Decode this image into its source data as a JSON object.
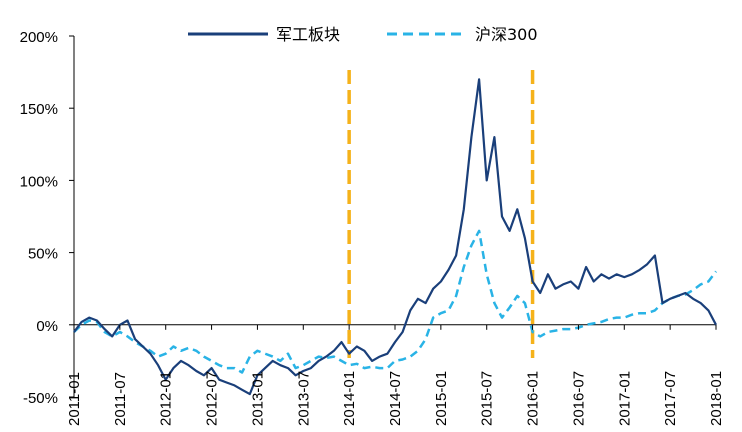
{
  "chart_data": {
    "type": "line",
    "legend_position": "top",
    "y_ticks": [
      "200%",
      "150%",
      "100%",
      "50%",
      "0%",
      "-50%"
    ],
    "y_tick_values": [
      200,
      150,
      100,
      50,
      0,
      -50
    ],
    "ylim": [
      -50,
      200
    ],
    "x_ticks": [
      "2011-01",
      "2011-07",
      "2012-01",
      "2012-07",
      "2013-01",
      "2013-07",
      "2014-01",
      "2014-07",
      "2015-01",
      "2015-07",
      "2016-01",
      "2016-07",
      "2017-01",
      "2017-07",
      "2018-01"
    ],
    "xlim": [
      "2011-01",
      "2018-01"
    ],
    "vertical_markers": [
      "2014-01",
      "2016-01"
    ],
    "marker_color": "#f5b21a",
    "series": [
      {
        "name": "军工板块",
        "color": "#1a3f7a",
        "dash": "solid",
        "points": [
          [
            "2011-01",
            -5
          ],
          [
            "2011-02",
            2
          ],
          [
            "2011-03",
            5
          ],
          [
            "2011-04",
            3
          ],
          [
            "2011-05",
            -3
          ],
          [
            "2011-06",
            -8
          ],
          [
            "2011-07",
            0
          ],
          [
            "2011-08",
            3
          ],
          [
            "2011-09",
            -10
          ],
          [
            "2011-10",
            -15
          ],
          [
            "2011-11",
            -20
          ],
          [
            "2011-12",
            -28
          ],
          [
            "2012-01",
            -38
          ],
          [
            "2012-02",
            -30
          ],
          [
            "2012-03",
            -25
          ],
          [
            "2012-04",
            -28
          ],
          [
            "2012-05",
            -32
          ],
          [
            "2012-06",
            -35
          ],
          [
            "2012-07",
            -30
          ],
          [
            "2012-08",
            -38
          ],
          [
            "2012-09",
            -40
          ],
          [
            "2012-10",
            -42
          ],
          [
            "2012-11",
            -45
          ],
          [
            "2012-12",
            -48
          ],
          [
            "2013-01",
            -35
          ],
          [
            "2013-02",
            -30
          ],
          [
            "2013-03",
            -25
          ],
          [
            "2013-04",
            -28
          ],
          [
            "2013-05",
            -30
          ],
          [
            "2013-06",
            -35
          ],
          [
            "2013-07",
            -32
          ],
          [
            "2013-08",
            -30
          ],
          [
            "2013-09",
            -25
          ],
          [
            "2013-10",
            -22
          ],
          [
            "2013-11",
            -18
          ],
          [
            "2013-12",
            -12
          ],
          [
            "2014-01",
            -20
          ],
          [
            "2014-02",
            -15
          ],
          [
            "2014-03",
            -18
          ],
          [
            "2014-04",
            -25
          ],
          [
            "2014-05",
            -22
          ],
          [
            "2014-06",
            -20
          ],
          [
            "2014-07",
            -12
          ],
          [
            "2014-08",
            -5
          ],
          [
            "2014-09",
            10
          ],
          [
            "2014-10",
            18
          ],
          [
            "2014-11",
            15
          ],
          [
            "2014-12",
            25
          ],
          [
            "2015-01",
            30
          ],
          [
            "2015-02",
            38
          ],
          [
            "2015-03",
            48
          ],
          [
            "2015-04",
            80
          ],
          [
            "2015-05",
            130
          ],
          [
            "2015-06",
            170
          ],
          [
            "2015-07",
            100
          ],
          [
            "2015-08",
            130
          ],
          [
            "2015-09",
            75
          ],
          [
            "2015-10",
            65
          ],
          [
            "2015-11",
            80
          ],
          [
            "2015-12",
            60
          ],
          [
            "2016-01",
            30
          ],
          [
            "2016-02",
            22
          ],
          [
            "2016-03",
            35
          ],
          [
            "2016-04",
            25
          ],
          [
            "2016-05",
            28
          ],
          [
            "2016-06",
            30
          ],
          [
            "2016-07",
            25
          ],
          [
            "2016-08",
            40
          ],
          [
            "2016-09",
            30
          ],
          [
            "2016-10",
            35
          ],
          [
            "2016-11",
            32
          ],
          [
            "2016-12",
            35
          ],
          [
            "2017-01",
            33
          ],
          [
            "2017-02",
            35
          ],
          [
            "2017-03",
            38
          ],
          [
            "2017-04",
            42
          ],
          [
            "2017-05",
            48
          ],
          [
            "2017-06",
            15
          ],
          [
            "2017-07",
            18
          ],
          [
            "2017-08",
            20
          ],
          [
            "2017-09",
            22
          ],
          [
            "2017-10",
            18
          ],
          [
            "2017-11",
            15
          ],
          [
            "2017-12",
            10
          ],
          [
            "2018-01",
            0
          ]
        ]
      },
      {
        "name": "沪深300",
        "color": "#29b3e6",
        "dash": "dashed",
        "points": [
          [
            "2011-01",
            -5
          ],
          [
            "2011-02",
            0
          ],
          [
            "2011-03",
            3
          ],
          [
            "2011-04",
            2
          ],
          [
            "2011-05",
            -5
          ],
          [
            "2011-06",
            -8
          ],
          [
            "2011-07",
            -5
          ],
          [
            "2011-08",
            -8
          ],
          [
            "2011-09",
            -12
          ],
          [
            "2011-10",
            -15
          ],
          [
            "2011-11",
            -18
          ],
          [
            "2011-12",
            -22
          ],
          [
            "2012-01",
            -20
          ],
          [
            "2012-02",
            -15
          ],
          [
            "2012-03",
            -18
          ],
          [
            "2012-04",
            -16
          ],
          [
            "2012-05",
            -18
          ],
          [
            "2012-06",
            -22
          ],
          [
            "2012-07",
            -25
          ],
          [
            "2012-08",
            -28
          ],
          [
            "2012-09",
            -30
          ],
          [
            "2012-10",
            -30
          ],
          [
            "2012-11",
            -33
          ],
          [
            "2012-12",
            -22
          ],
          [
            "2013-01",
            -18
          ],
          [
            "2013-02",
            -20
          ],
          [
            "2013-03",
            -22
          ],
          [
            "2013-04",
            -25
          ],
          [
            "2013-05",
            -20
          ],
          [
            "2013-06",
            -30
          ],
          [
            "2013-07",
            -28
          ],
          [
            "2013-08",
            -25
          ],
          [
            "2013-09",
            -22
          ],
          [
            "2013-10",
            -23
          ],
          [
            "2013-11",
            -22
          ],
          [
            "2013-12",
            -25
          ],
          [
            "2014-01",
            -28
          ],
          [
            "2014-02",
            -27
          ],
          [
            "2014-03",
            -30
          ],
          [
            "2014-04",
            -29
          ],
          [
            "2014-05",
            -30
          ],
          [
            "2014-06",
            -30
          ],
          [
            "2014-07",
            -25
          ],
          [
            "2014-08",
            -24
          ],
          [
            "2014-09",
            -22
          ],
          [
            "2014-10",
            -18
          ],
          [
            "2014-11",
            -10
          ],
          [
            "2014-12",
            5
          ],
          [
            "2015-01",
            8
          ],
          [
            "2015-02",
            10
          ],
          [
            "2015-03",
            20
          ],
          [
            "2015-04",
            40
          ],
          [
            "2015-05",
            55
          ],
          [
            "2015-06",
            65
          ],
          [
            "2015-07",
            35
          ],
          [
            "2015-08",
            15
          ],
          [
            "2015-09",
            5
          ],
          [
            "2015-10",
            12
          ],
          [
            "2015-11",
            20
          ],
          [
            "2015-12",
            15
          ],
          [
            "2016-01",
            -5
          ],
          [
            "2016-02",
            -8
          ],
          [
            "2016-03",
            -5
          ],
          [
            "2016-04",
            -4
          ],
          [
            "2016-05",
            -3
          ],
          [
            "2016-06",
            -3
          ],
          [
            "2016-07",
            -2
          ],
          [
            "2016-08",
            0
          ],
          [
            "2016-09",
            1
          ],
          [
            "2016-10",
            2
          ],
          [
            "2016-11",
            4
          ],
          [
            "2016-12",
            5
          ],
          [
            "2017-01",
            5
          ],
          [
            "2017-02",
            7
          ],
          [
            "2017-03",
            8
          ],
          [
            "2017-04",
            8
          ],
          [
            "2017-05",
            10
          ],
          [
            "2017-06",
            15
          ],
          [
            "2017-07",
            18
          ],
          [
            "2017-08",
            20
          ],
          [
            "2017-09",
            21
          ],
          [
            "2017-10",
            24
          ],
          [
            "2017-11",
            28
          ],
          [
            "2017-12",
            30
          ],
          [
            "2018-01",
            37
          ]
        ]
      }
    ]
  }
}
